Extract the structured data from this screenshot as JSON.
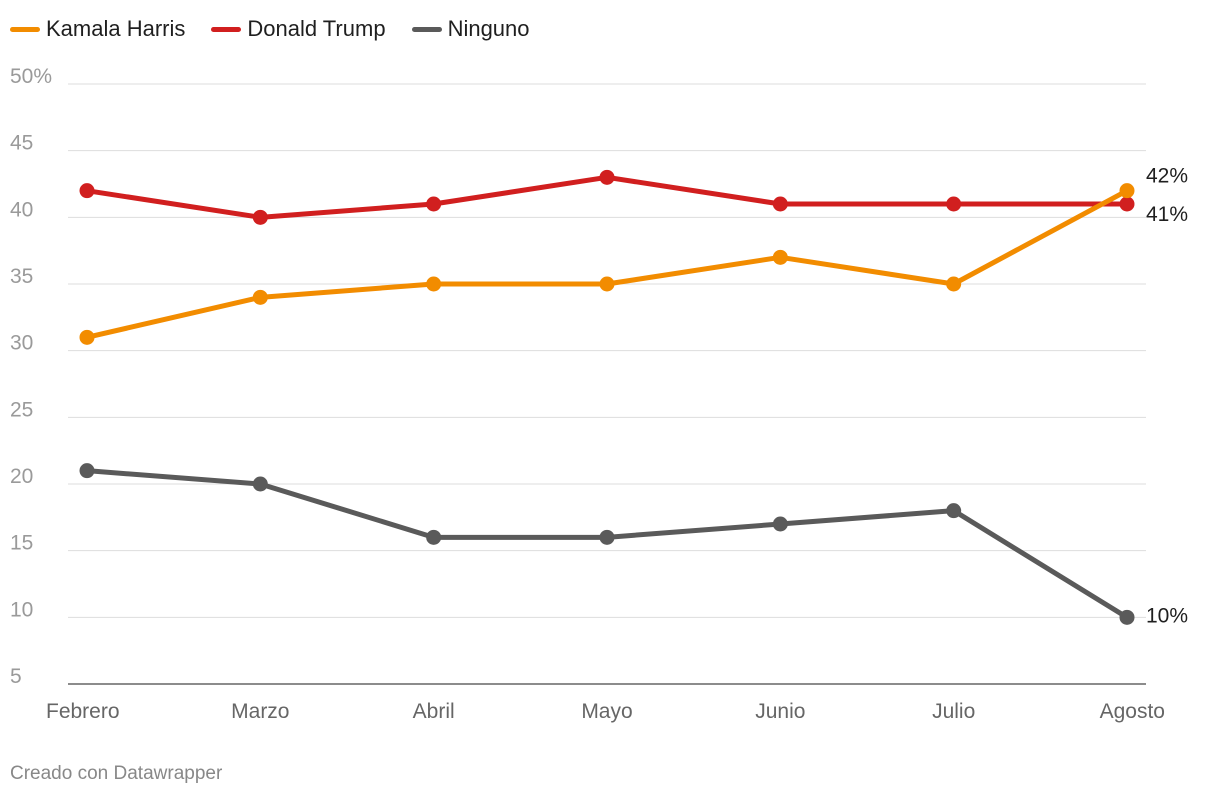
{
  "colors": {
    "harris": "#f28c00",
    "trump": "#d11f1f",
    "ninguno": "#5a5a5a",
    "grid": "#dddddd",
    "axis": "#666666"
  },
  "legend": [
    {
      "label": "Kamala Harris",
      "color": "#f28c00"
    },
    {
      "label": "Donald Trump",
      "color": "#d11f1f"
    },
    {
      "label": "Ninguno",
      "color": "#5a5a5a"
    }
  ],
  "chart_data": {
    "type": "line",
    "title": "",
    "xlabel": "",
    "ylabel": "",
    "categories": [
      "Febrero",
      "Marzo",
      "Abril",
      "Mayo",
      "Junio",
      "Julio",
      "Agosto"
    ],
    "ylim": [
      5,
      50
    ],
    "yticks": [
      5,
      10,
      15,
      20,
      25,
      30,
      35,
      40,
      45,
      50
    ],
    "ytick_labels": [
      "5",
      "10",
      "15",
      "20",
      "25",
      "30",
      "35",
      "40",
      "45",
      "50%"
    ],
    "grid": true,
    "series": [
      {
        "name": "Kamala Harris",
        "color": "#f28c00",
        "values": [
          31,
          34,
          35,
          35,
          37,
          35,
          42
        ],
        "end_label": "42%"
      },
      {
        "name": "Donald Trump",
        "color": "#d11f1f",
        "values": [
          42,
          40,
          41,
          43,
          41,
          41,
          41
        ],
        "end_label": "41%"
      },
      {
        "name": "Ninguno",
        "color": "#5a5a5a",
        "values": [
          21,
          20,
          16,
          16,
          17,
          18,
          10
        ],
        "end_label": "10%"
      }
    ]
  },
  "footer": {
    "credit": "Creado con Datawrapper"
  }
}
